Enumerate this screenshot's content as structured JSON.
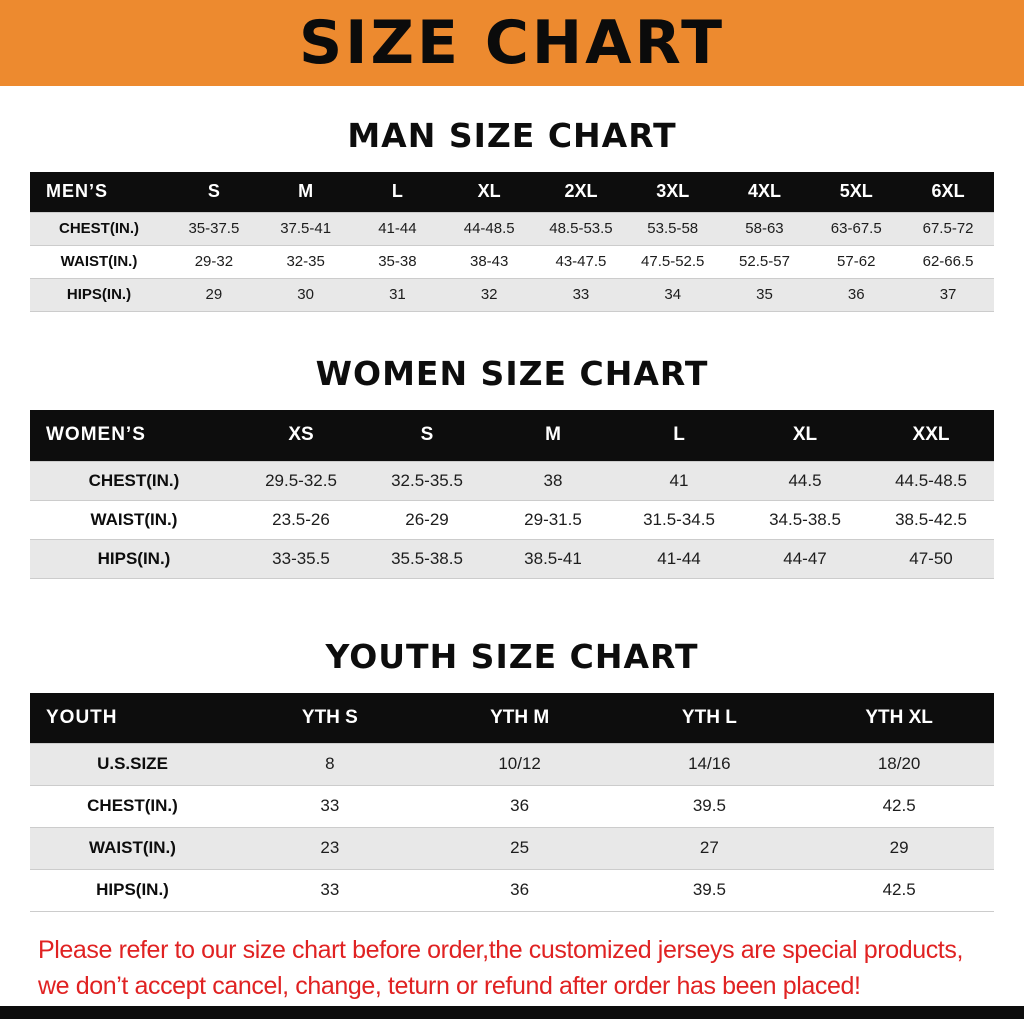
{
  "banner": {
    "title": "SIZE CHART"
  },
  "colors": {
    "banner_bg": "#ED8A2F",
    "table_header_bg": "#0D0D0D",
    "row_alt_bg": "#E8E8E8",
    "note_red": "#E02222",
    "bottom_bar": "#0D0D0D"
  },
  "chart_data": [
    {
      "type": "table",
      "title": "MAN SIZE CHART",
      "row_header": "MEN’S",
      "columns": [
        "S",
        "M",
        "L",
        "XL",
        "2XL",
        "3XL",
        "4XL",
        "5XL",
        "6XL"
      ],
      "rows": [
        {
          "label": "CHEST(IN.)",
          "values": [
            "35-37.5",
            "37.5-41",
            "41-44",
            "44-48.5",
            "48.5-53.5",
            "53.5-58",
            "58-63",
            "63-67.5",
            "67.5-72"
          ]
        },
        {
          "label": "WAIST(IN.)",
          "values": [
            "29-32",
            "32-35",
            "35-38",
            "38-43",
            "43-47.5",
            "47.5-52.5",
            "52.5-57",
            "57-62",
            "62-66.5"
          ]
        },
        {
          "label": "HIPS(IN.)",
          "values": [
            "29",
            "30",
            "31",
            "32",
            "33",
            "34",
            "35",
            "36",
            "37"
          ]
        }
      ]
    },
    {
      "type": "table",
      "title": "WOMEN SIZE CHART",
      "row_header": "WOMEN’S",
      "columns": [
        "XS",
        "S",
        "M",
        "L",
        "XL",
        "XXL"
      ],
      "rows": [
        {
          "label": "CHEST(IN.)",
          "values": [
            "29.5-32.5",
            "32.5-35.5",
            "38",
            "41",
            "44.5",
            "44.5-48.5"
          ]
        },
        {
          "label": "WAIST(IN.)",
          "values": [
            "23.5-26",
            "26-29",
            "29-31.5",
            "31.5-34.5",
            "34.5-38.5",
            "38.5-42.5"
          ]
        },
        {
          "label": "HIPS(IN.)",
          "values": [
            "33-35.5",
            "35.5-38.5",
            "38.5-41",
            "41-44",
            "44-47",
            "47-50"
          ]
        }
      ]
    },
    {
      "type": "table",
      "title": "YOUTH SIZE CHART",
      "row_header": "YOUTH",
      "columns": [
        "YTH S",
        "YTH M",
        "YTH L",
        "YTH XL"
      ],
      "rows": [
        {
          "label": "U.S.SIZE",
          "values": [
            "8",
            "10/12",
            "14/16",
            "18/20"
          ]
        },
        {
          "label": "CHEST(IN.)",
          "values": [
            "33",
            "36",
            "39.5",
            "42.5"
          ]
        },
        {
          "label": "WAIST(IN.)",
          "values": [
            "23",
            "25",
            "27",
            "29"
          ]
        },
        {
          "label": "HIPS(IN.)",
          "values": [
            "33",
            "36",
            "39.5",
            "42.5"
          ]
        }
      ]
    }
  ],
  "footer_note": {
    "line1": "Please refer to our size chart before order,the customized jerseys are special products,",
    "line2": "we don’t accept cancel, change, teturn or refund after order has been placed!"
  }
}
